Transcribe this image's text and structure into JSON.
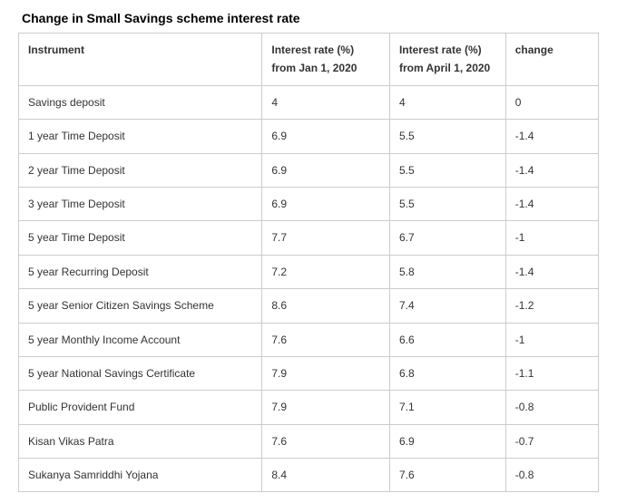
{
  "title": "Change in Small Savings scheme interest rate",
  "columns": [
    "Instrument",
    "Interest rate (%) from Jan 1, 2020",
    "Interest rate (%) from April 1, 2020",
    "change"
  ],
  "rows": [
    {
      "instrument": "Savings deposit",
      "rate_jan": "4",
      "rate_apr": "4",
      "change": "0"
    },
    {
      "instrument": "1 year Time Deposit",
      "rate_jan": "6.9",
      "rate_apr": "5.5",
      "change": "-1.4"
    },
    {
      "instrument": "2 year Time Deposit",
      "rate_jan": "6.9",
      "rate_apr": "5.5",
      "change": "-1.4"
    },
    {
      "instrument": "3 year Time Deposit",
      "rate_jan": "6.9",
      "rate_apr": "5.5",
      "change": "-1.4"
    },
    {
      "instrument": "5 year Time Deposit",
      "rate_jan": "7.7",
      "rate_apr": "6.7",
      "change": "-1"
    },
    {
      "instrument": "5 year Recurring Deposit",
      "rate_jan": "7.2",
      "rate_apr": "5.8",
      "change": "-1.4"
    },
    {
      "instrument": "5 year Senior Citizen Savings Scheme",
      "rate_jan": "8.6",
      "rate_apr": "7.4",
      "change": "-1.2"
    },
    {
      "instrument": "5 year Monthly Income Account",
      "rate_jan": "7.6",
      "rate_apr": "6.6",
      "change": "-1"
    },
    {
      "instrument": "5 year National Savings Certificate",
      "rate_jan": "7.9",
      "rate_apr": "6.8",
      "change": "-1.1"
    },
    {
      "instrument": "Public Provident Fund",
      "rate_jan": "7.9",
      "rate_apr": "7.1",
      "change": "-0.8"
    },
    {
      "instrument": "Kisan Vikas Patra",
      "rate_jan": "7.6",
      "rate_apr": "6.9",
      "change": "-0.7"
    },
    {
      "instrument": "Sukanya Samriddhi Yojana",
      "rate_jan": "8.4",
      "rate_apr": "7.6",
      "change": "-0.8"
    }
  ]
}
